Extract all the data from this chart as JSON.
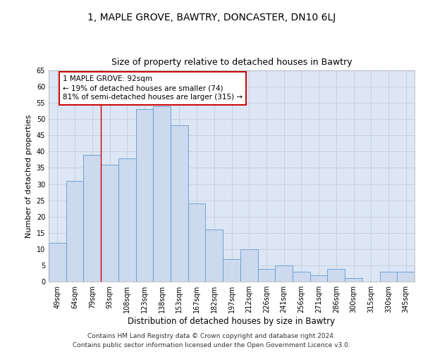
{
  "title1": "1, MAPLE GROVE, BAWTRY, DONCASTER, DN10 6LJ",
  "title2": "Size of property relative to detached houses in Bawtry",
  "xlabel": "Distribution of detached houses by size in Bawtry",
  "ylabel": "Number of detached properties",
  "categories": [
    "49sqm",
    "64sqm",
    "79sqm",
    "93sqm",
    "108sqm",
    "123sqm",
    "138sqm",
    "153sqm",
    "167sqm",
    "182sqm",
    "197sqm",
    "212sqm",
    "226sqm",
    "241sqm",
    "256sqm",
    "271sqm",
    "286sqm",
    "300sqm",
    "315sqm",
    "330sqm",
    "345sqm"
  ],
  "values": [
    12,
    31,
    39,
    36,
    38,
    53,
    54,
    48,
    24,
    16,
    7,
    10,
    4,
    5,
    3,
    2,
    4,
    1,
    0,
    3,
    3
  ],
  "bar_color": "#ccd9ee",
  "bar_edge_color": "#6699cc",
  "grid_color": "#c8d0de",
  "background_color": "#dce6f5",
  "annotation_text": "1 MAPLE GROVE: 92sqm\n← 19% of detached houses are smaller (74)\n81% of semi-detached houses are larger (315) →",
  "annotation_box_color": "#ffffff",
  "annotation_box_edge": "#cc0000",
  "vline_color": "#cc0000",
  "ylim": [
    0,
    65
  ],
  "yticks": [
    0,
    5,
    10,
    15,
    20,
    25,
    30,
    35,
    40,
    45,
    50,
    55,
    60,
    65
  ],
  "footer1": "Contains HM Land Registry data © Crown copyright and database right 2024.",
  "footer2": "Contains public sector information licensed under the Open Government Licence v3.0.",
  "title1_fontsize": 10,
  "title2_fontsize": 9,
  "xlabel_fontsize": 8.5,
  "ylabel_fontsize": 8,
  "tick_fontsize": 7,
  "annotation_fontsize": 7.5,
  "footer_fontsize": 6.5
}
